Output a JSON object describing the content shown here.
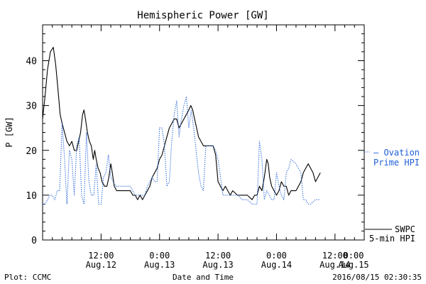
{
  "chart_data": {
    "type": "line",
    "title": "Hemispheric Power [GW]",
    "xlabel": "Date and Time",
    "ylabel": "P [GW]",
    "ylim": [
      0,
      48
    ],
    "xlim": [
      0,
      66
    ],
    "yticks": [
      0,
      10,
      20,
      30,
      40
    ],
    "x_tick_labels": [
      {
        "x": 12,
        "time": "12:00",
        "date": "Aug.12"
      },
      {
        "x": 24,
        "time": "0:00",
        "date": "Aug.13"
      },
      {
        "x": 36,
        "time": "12:00",
        "date": "Aug.13"
      },
      {
        "x": 48,
        "time": "0:00",
        "date": "Aug.14"
      },
      {
        "x": 60,
        "time": "12:00",
        "date": "Aug.14"
      },
      {
        "x": 72,
        "time": "0:00",
        "date": "Aug.15"
      }
    ],
    "series": [
      {
        "name": "SWPC 5-min HPI",
        "color": "#000000",
        "style": "solid",
        "points": [
          [
            0,
            27
          ],
          [
            0.5,
            32
          ],
          [
            1,
            38
          ],
          [
            1.6,
            42
          ],
          [
            2.2,
            43
          ],
          [
            2.7,
            39
          ],
          [
            3.2,
            33
          ],
          [
            3.6,
            28
          ],
          [
            4,
            26
          ],
          [
            4.5,
            24
          ],
          [
            5,
            22
          ],
          [
            5.5,
            21
          ],
          [
            6,
            22
          ],
          [
            6.5,
            20
          ],
          [
            7,
            20
          ],
          [
            7.4,
            22
          ],
          [
            7.8,
            24
          ],
          [
            8.2,
            28
          ],
          [
            8.5,
            29
          ],
          [
            8.8,
            27
          ],
          [
            9.2,
            24
          ],
          [
            9.6,
            22
          ],
          [
            10,
            21
          ],
          [
            10.4,
            18
          ],
          [
            10.7,
            20
          ],
          [
            11,
            18
          ],
          [
            11.4,
            16
          ],
          [
            11.8,
            15
          ],
          [
            12.2,
            13
          ],
          [
            12.7,
            12
          ],
          [
            13.2,
            12
          ],
          [
            13.6,
            14
          ],
          [
            14,
            17
          ],
          [
            14.3,
            15
          ],
          [
            14.7,
            12
          ],
          [
            15.2,
            11
          ],
          [
            16,
            11
          ],
          [
            17,
            11
          ],
          [
            18,
            11
          ],
          [
            18.5,
            10
          ],
          [
            19,
            10
          ],
          [
            19.5,
            9
          ],
          [
            20,
            10
          ],
          [
            20.5,
            9
          ],
          [
            21,
            10
          ],
          [
            21.5,
            11
          ],
          [
            22,
            12
          ],
          [
            22.5,
            14
          ],
          [
            23,
            15
          ],
          [
            23.5,
            16
          ],
          [
            24,
            18
          ],
          [
            24.5,
            19
          ],
          [
            25,
            21
          ],
          [
            25.5,
            23
          ],
          [
            26,
            25
          ],
          [
            26.5,
            26
          ],
          [
            27,
            27
          ],
          [
            27.5,
            27
          ],
          [
            28,
            25
          ],
          [
            28.5,
            26
          ],
          [
            29,
            27
          ],
          [
            29.5,
            28
          ],
          [
            30,
            29
          ],
          [
            30.4,
            30
          ],
          [
            30.8,
            29
          ],
          [
            31.2,
            27
          ],
          [
            31.6,
            25
          ],
          [
            32,
            23
          ],
          [
            32.5,
            22
          ],
          [
            33,
            21
          ],
          [
            34,
            21
          ],
          [
            35,
            21
          ],
          [
            35.5,
            19
          ],
          [
            36,
            13
          ],
          [
            36.5,
            12
          ],
          [
            37,
            11
          ],
          [
            37.5,
            12
          ],
          [
            38,
            11
          ],
          [
            38.5,
            10
          ],
          [
            39,
            11
          ],
          [
            40,
            10
          ],
          [
            41,
            10
          ],
          [
            42,
            10
          ],
          [
            43,
            9
          ],
          [
            43.5,
            10
          ],
          [
            44,
            10
          ],
          [
            44.5,
            12
          ],
          [
            45,
            11
          ],
          [
            45.5,
            14
          ],
          [
            46,
            18
          ],
          [
            46.3,
            17
          ],
          [
            46.6,
            14
          ],
          [
            47,
            12
          ],
          [
            47.5,
            11
          ],
          [
            48,
            10
          ],
          [
            48.5,
            11
          ],
          [
            49,
            13
          ],
          [
            49.5,
            12
          ],
          [
            50,
            12
          ],
          [
            50.5,
            10
          ],
          [
            51,
            11
          ],
          [
            52,
            11
          ],
          [
            53,
            13
          ],
          [
            53.5,
            15
          ],
          [
            54,
            16
          ],
          [
            54.5,
            17
          ],
          [
            55,
            16
          ],
          [
            55.5,
            15
          ],
          [
            56,
            13
          ],
          [
            56.5,
            14
          ],
          [
            57,
            15
          ]
        ]
      },
      {
        "name": "Ovation Prime HPI",
        "color": "#1f5fd6",
        "style": "dotted",
        "points": [
          [
            0,
            8
          ],
          [
            0.5,
            8
          ],
          [
            1,
            9
          ],
          [
            1.5,
            10
          ],
          [
            2,
            10
          ],
          [
            2.5,
            9
          ],
          [
            3,
            11
          ],
          [
            3.5,
            11
          ],
          [
            4,
            26
          ],
          [
            4.5,
            18
          ],
          [
            5,
            8
          ],
          [
            5.5,
            20
          ],
          [
            6,
            18
          ],
          [
            6.5,
            10
          ],
          [
            7,
            21
          ],
          [
            7.5,
            23
          ],
          [
            8,
            10
          ],
          [
            8.5,
            8
          ],
          [
            9,
            24
          ],
          [
            9.5,
            13
          ],
          [
            10,
            10
          ],
          [
            10.5,
            10
          ],
          [
            11,
            17
          ],
          [
            11.5,
            8
          ],
          [
            12,
            8
          ],
          [
            12.5,
            14
          ],
          [
            13,
            15
          ],
          [
            13.5,
            19
          ],
          [
            14,
            14
          ],
          [
            14.5,
            13
          ],
          [
            15,
            12
          ],
          [
            16,
            12
          ],
          [
            17,
            12
          ],
          [
            18,
            12
          ],
          [
            19,
            10
          ],
          [
            19.5,
            10
          ],
          [
            20,
            10
          ],
          [
            21,
            10
          ],
          [
            21.5,
            12
          ],
          [
            22,
            13
          ],
          [
            22.5,
            14
          ],
          [
            23,
            13
          ],
          [
            23.5,
            13
          ],
          [
            24,
            25
          ],
          [
            24.5,
            25
          ],
          [
            25,
            21
          ],
          [
            25.5,
            12
          ],
          [
            26,
            13
          ],
          [
            26.5,
            22
          ],
          [
            27,
            28
          ],
          [
            27.5,
            31
          ],
          [
            28,
            23
          ],
          [
            28.5,
            27
          ],
          [
            29,
            30
          ],
          [
            29.5,
            32
          ],
          [
            30,
            25
          ],
          [
            30.5,
            29
          ],
          [
            31,
            25
          ],
          [
            31.5,
            20
          ],
          [
            32,
            15
          ],
          [
            32.5,
            12
          ],
          [
            33,
            11
          ],
          [
            33.5,
            21
          ],
          [
            34,
            21
          ],
          [
            35,
            21
          ],
          [
            35.5,
            20
          ],
          [
            36,
            18
          ],
          [
            36.5,
            14
          ],
          [
            37,
            10
          ],
          [
            37.5,
            10
          ],
          [
            38,
            10
          ],
          [
            39,
            10
          ],
          [
            40,
            10
          ],
          [
            41,
            9
          ],
          [
            42,
            9
          ],
          [
            43,
            8
          ],
          [
            43.5,
            8
          ],
          [
            44,
            8
          ],
          [
            44.5,
            22
          ],
          [
            45,
            18
          ],
          [
            45.5,
            9
          ],
          [
            46,
            11
          ],
          [
            46.5,
            10
          ],
          [
            47,
            9
          ],
          [
            47.5,
            9
          ],
          [
            48,
            15
          ],
          [
            48.5,
            12
          ],
          [
            49,
            10
          ],
          [
            49.5,
            9
          ],
          [
            50,
            15
          ],
          [
            50.5,
            16
          ],
          [
            51,
            18
          ],
          [
            52,
            17
          ],
          [
            53,
            15
          ],
          [
            53.5,
            9
          ],
          [
            54,
            9
          ],
          [
            54.5,
            8
          ],
          [
            55,
            8
          ],
          [
            56,
            9
          ],
          [
            57,
            9
          ]
        ]
      }
    ]
  },
  "footer": {
    "left": "Plot: CCMC",
    "center": "Date and Time",
    "right": "2016/08/15 02:30:35"
  },
  "legend": {
    "ovation_line1": "— Ovation",
    "ovation_line2": "Prime HPI",
    "swpc_line1": "SWPC",
    "swpc_line2": "5-min HPI"
  }
}
